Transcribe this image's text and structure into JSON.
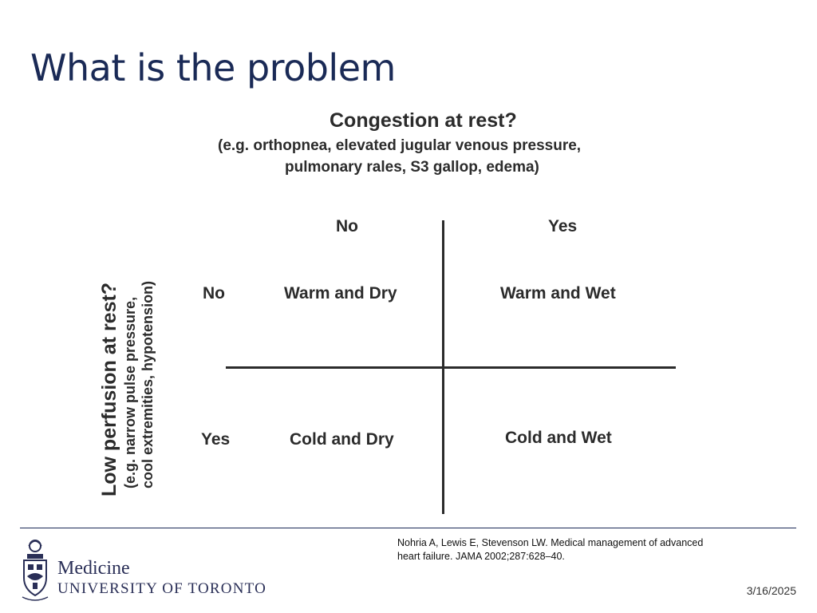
{
  "slide": {
    "title": "What is the problem",
    "date": "3/16/2025"
  },
  "figure": {
    "column_axis": {
      "heading": "Congestion at rest?",
      "sub_line1": "(e.g. orthopnea, elevated jugular venous pressure,",
      "sub_line2": "pulmonary rales, S3 gallop, edema)",
      "labels": [
        "No",
        "Yes"
      ]
    },
    "row_axis": {
      "heading": "Low perfusion at rest?",
      "sub_line1": "(e.g. narrow pulse pressure,",
      "sub_line2": "cool extremities, hypotension)",
      "labels": [
        "No",
        "Yes"
      ]
    },
    "cells": {
      "no_no": "Warm and Dry",
      "no_yes": "Warm and Wet",
      "yes_no": "Cold and Dry",
      "yes_yes": "Cold and Wet"
    }
  },
  "citation": {
    "line1": "Nohria A, Lewis E, Stevenson LW. Medical management of advanced",
    "line2": "heart failure. JAMA 2002;287:628–40."
  },
  "logo": {
    "line1": "Medicine",
    "line2": "UNIVERSITY OF TORONTO",
    "icon": "university-crest-icon"
  },
  "colors": {
    "title": "#1a2a56",
    "rule": "#1a2a56",
    "figure_text": "#2b2b2b"
  }
}
